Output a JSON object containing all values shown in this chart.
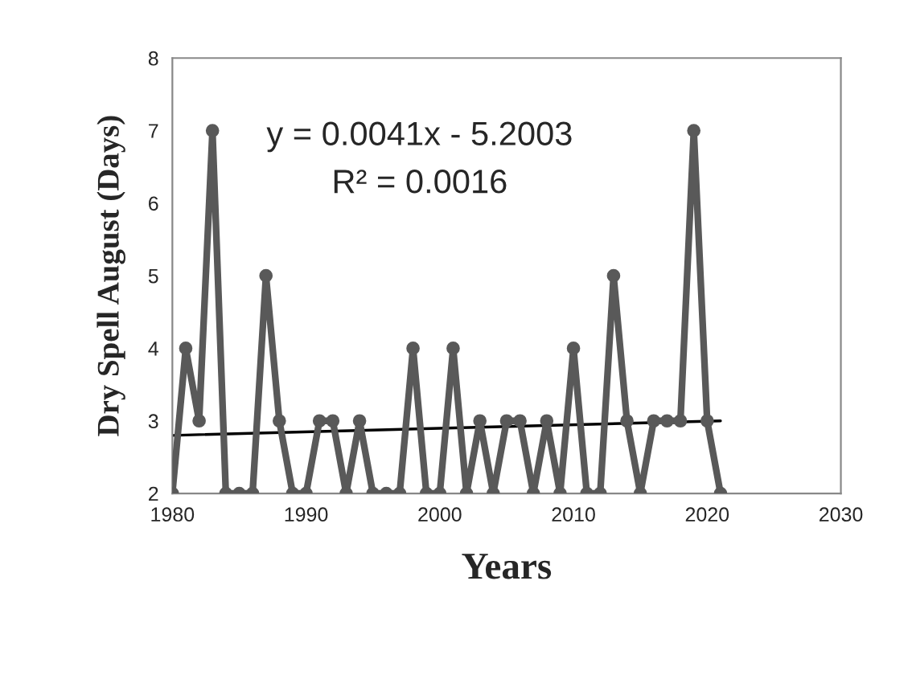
{
  "chart_data": {
    "type": "line",
    "xlabel": "Years",
    "ylabel": "Dry Spell August (Days)",
    "xlim": [
      1980,
      2030
    ],
    "xticks": [
      1980,
      1990,
      2000,
      2010,
      2020,
      2030
    ],
    "ylim": [
      2,
      8
    ],
    "yticks": [
      2,
      3,
      4,
      5,
      6,
      7,
      8
    ],
    "grid": false,
    "annotations": [
      "y = 0.0041x - 5.2003",
      "R² = 0.0016"
    ],
    "series": [
      {
        "color": "#595959",
        "marker": "circle",
        "x": [
          1980,
          1981,
          1982,
          1983,
          1984,
          1985,
          1986,
          1987,
          1988,
          1989,
          1990,
          1991,
          1992,
          1993,
          1994,
          1995,
          1996,
          1997,
          1998,
          1999,
          2000,
          2001,
          2002,
          2003,
          2004,
          2005,
          2006,
          2007,
          2008,
          2009,
          2010,
          2011,
          2012,
          2013,
          2014,
          2015,
          2016,
          2017,
          2018,
          2019,
          2020,
          2021
        ],
        "values": [
          2,
          4,
          3,
          7,
          2,
          2,
          2,
          5,
          3,
          2,
          2,
          3,
          3,
          2,
          3,
          2,
          2,
          2,
          4,
          2,
          2,
          4,
          2,
          3,
          2,
          3,
          3,
          2,
          3,
          2,
          4,
          2,
          2,
          5,
          3,
          2,
          3,
          3,
          3,
          7,
          3,
          2
        ]
      },
      {
        "color": "#000000",
        "marker": "none",
        "x": [
          1980,
          2021
        ],
        "values": [
          2.8,
          3.0
        ]
      }
    ]
  }
}
